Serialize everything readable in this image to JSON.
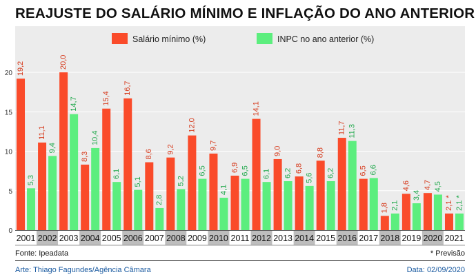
{
  "chart_data": {
    "type": "bar",
    "title": "REAJUSTE DO SALÁRIO MÍNIMO E INFLAÇÃO DO ANO ANTERIOR",
    "categories": [
      "2001",
      "2002",
      "2003",
      "2004",
      "2005",
      "2006",
      "2007",
      "2008",
      "2009",
      "2010",
      "2011",
      "2012",
      "2013",
      "2014",
      "2015",
      "2016",
      "2017",
      "2018",
      "2019",
      "2020",
      "2021"
    ],
    "series": [
      {
        "name": "Salário mínimo (%)",
        "color": "#fa4b2a",
        "values": [
          19.2,
          11.1,
          20.0,
          8.3,
          15.4,
          16.7,
          8.6,
          9.2,
          12.0,
          9.7,
          6.9,
          14.1,
          9.0,
          6.8,
          8.8,
          11.7,
          6.5,
          1.8,
          4.6,
          4.7,
          2.1
        ],
        "labels": [
          "19,2",
          "11,1",
          "20,0",
          "8,3",
          "15,4",
          "16,7",
          "8,6",
          "9,2",
          "12,0",
          "9,7",
          "6,9",
          "14,1",
          "9,0",
          "6,8",
          "8,8",
          "11,7",
          "6,5",
          "1,8",
          "4,6",
          "4,7",
          "2,1 *"
        ]
      },
      {
        "name": "INPC no ano anterior (%)",
        "color": "#5cee7e",
        "values": [
          5.3,
          9.4,
          14.7,
          10.4,
          6.1,
          5.1,
          2.8,
          5.2,
          6.5,
          4.1,
          6.5,
          6.1,
          6.2,
          5.6,
          6.2,
          11.3,
          6.6,
          2.1,
          3.4,
          4.5,
          2.1
        ],
        "labels": [
          "5,3",
          "9,4",
          "14,7",
          "10,4",
          "6,1",
          "5,1",
          "2,8",
          "5,2",
          "6,5",
          "4,1",
          "6,5",
          "6,1",
          "6,2",
          "5,6",
          "6,2",
          "11,3",
          "6,6",
          "2,1",
          "3,4",
          "4,5",
          "2,1 *"
        ]
      }
    ],
    "yticks": [
      "0",
      "5",
      "10",
      "15",
      "20"
    ],
    "ylim": [
      0,
      25
    ],
    "grid": true,
    "legend": "top-center"
  },
  "footer": {
    "source": "Fonte: Ipeadata",
    "note": "* Previsão",
    "credit": "Arte: Thiago Fagundes/Agência Câmara",
    "date": "Data: 02/09/2020"
  }
}
